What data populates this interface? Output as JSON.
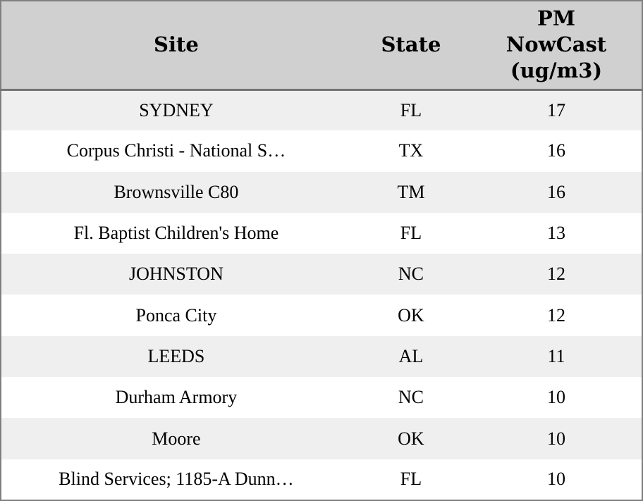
{
  "chart_data": {
    "type": "table",
    "title": "",
    "columns": [
      "Site",
      "State",
      "PM NowCast (ug/m3)"
    ],
    "rows": [
      [
        "SYDNEY",
        "FL",
        17
      ],
      [
        "Corpus Christi - National S…",
        "TX",
        16
      ],
      [
        "Brownsville C80",
        "TM",
        16
      ],
      [
        "Fl. Baptist Children's Home",
        "FL",
        13
      ],
      [
        "JOHNSTON",
        "NC",
        12
      ],
      [
        "Ponca City",
        "OK",
        12
      ],
      [
        "LEEDS",
        "AL",
        11
      ],
      [
        "Durham Armory",
        "NC",
        10
      ],
      [
        "Moore",
        "OK",
        10
      ],
      [
        "Blind Services; 1185-A Dunn…",
        "FL",
        10
      ]
    ]
  },
  "table": {
    "headers": [
      "Site",
      "State",
      "PM\nNowCast\n(ug/m3)"
    ],
    "rows": [
      {
        "site": "SYDNEY",
        "state": "FL",
        "pm": "17"
      },
      {
        "site": "Corpus Christi - National S…",
        "state": "TX",
        "pm": "16"
      },
      {
        "site": "Brownsville C80",
        "state": "TM",
        "pm": "16"
      },
      {
        "site": "Fl. Baptist Children's Home",
        "state": "FL",
        "pm": "13"
      },
      {
        "site": "JOHNSTON",
        "state": "NC",
        "pm": "12"
      },
      {
        "site": "Ponca City",
        "state": "OK",
        "pm": "12"
      },
      {
        "site": "LEEDS",
        "state": "AL",
        "pm": "11"
      },
      {
        "site": "Durham Armory",
        "state": "NC",
        "pm": "10"
      },
      {
        "site": "Moore",
        "state": "OK",
        "pm": "10"
      },
      {
        "site": "Blind Services; 1185-A Dunn…",
        "state": "FL",
        "pm": "10"
      }
    ]
  },
  "colors": {
    "header_bg": "#d0d0d0",
    "row_alt_bg": "#efefef",
    "row_bg": "#ffffff",
    "border": "#7f7f7f",
    "text": "#000000"
  }
}
